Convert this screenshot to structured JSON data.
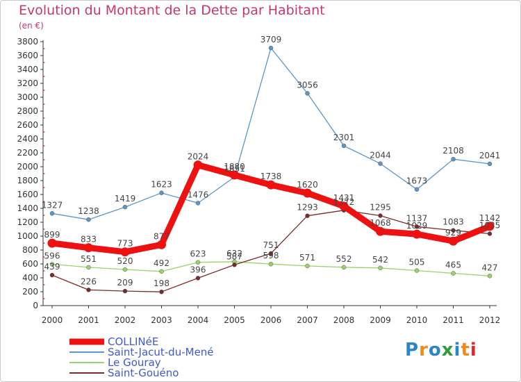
{
  "title": "Evolution du Montant de la Dette par Habitant",
  "subtitle": "(en €)",
  "logo": {
    "text": "Proxiti",
    "colors": [
      "#2b86c6",
      "#f08a1c",
      "#2b86c6",
      "#2e9b3a",
      "#2b86c6",
      "#f08a1c",
      "#e6262f"
    ]
  },
  "chart_data": {
    "type": "line",
    "title": "Evolution du Montant de la Dette par Habitant",
    "subtitle": "(en €)",
    "x": [
      "2000",
      "2001",
      "2002",
      "2003",
      "2004",
      "2005",
      "2006",
      "2007",
      "2008",
      "2009",
      "2010",
      "2011",
      "2012"
    ],
    "ylim": [
      0,
      3800
    ],
    "yticks": [
      0,
      200,
      400,
      600,
      800,
      1000,
      1200,
      1400,
      1600,
      1800,
      2000,
      2200,
      2400,
      2600,
      2800,
      3000,
      3200,
      3400,
      3600,
      3800
    ],
    "grid": false,
    "legend_position": "bottom-left",
    "series": [
      {
        "name": "COLLINéE",
        "color": "#ee1111",
        "emphasis": true,
        "values": [
          899,
          833,
          773,
          877,
          2024,
          1880,
          1738,
          1620,
          1431,
          1068,
          1029,
          929,
          1142
        ],
        "labels": [
          "899",
          "833",
          "773",
          "877",
          "2024",
          "1880",
          "1738",
          "1620",
          "1431",
          "1068",
          "1029",
          "929",
          "1142"
        ]
      },
      {
        "name": "Saint-Jacut-du-Mené",
        "color": "#5b96c8",
        "values": [
          1327,
          1238,
          1419,
          1623,
          1476,
          1851,
          3709,
          3056,
          2301,
          2044,
          1673,
          2108,
          2041
        ],
        "labels": [
          "1327",
          "1238",
          "1419",
          "1623",
          "1476",
          "1851",
          "3709",
          "3056",
          "2301",
          "2044",
          "1673",
          "2108",
          "2041"
        ]
      },
      {
        "name": "Le Gouray",
        "color": "#99d36a",
        "values": [
          596,
          551,
          520,
          492,
          623,
          632,
          598,
          571,
          552,
          542,
          505,
          465,
          427
        ],
        "labels": [
          "596",
          "551",
          "520",
          "492",
          "623",
          "632",
          "598",
          "571",
          "552",
          "542",
          "505",
          "465",
          "427"
        ]
      },
      {
        "name": "Saint-Gouéno",
        "color": "#7a2a2a",
        "values": [
          439,
          226,
          209,
          198,
          396,
          587,
          751,
          1293,
          1372,
          1295,
          1137,
          1083,
          1035
        ],
        "labels": [
          "439",
          "226",
          "209",
          "198",
          "396",
          "587",
          "751",
          "1293",
          "1372",
          "1295",
          "1137",
          "1083",
          "1035"
        ]
      }
    ]
  }
}
